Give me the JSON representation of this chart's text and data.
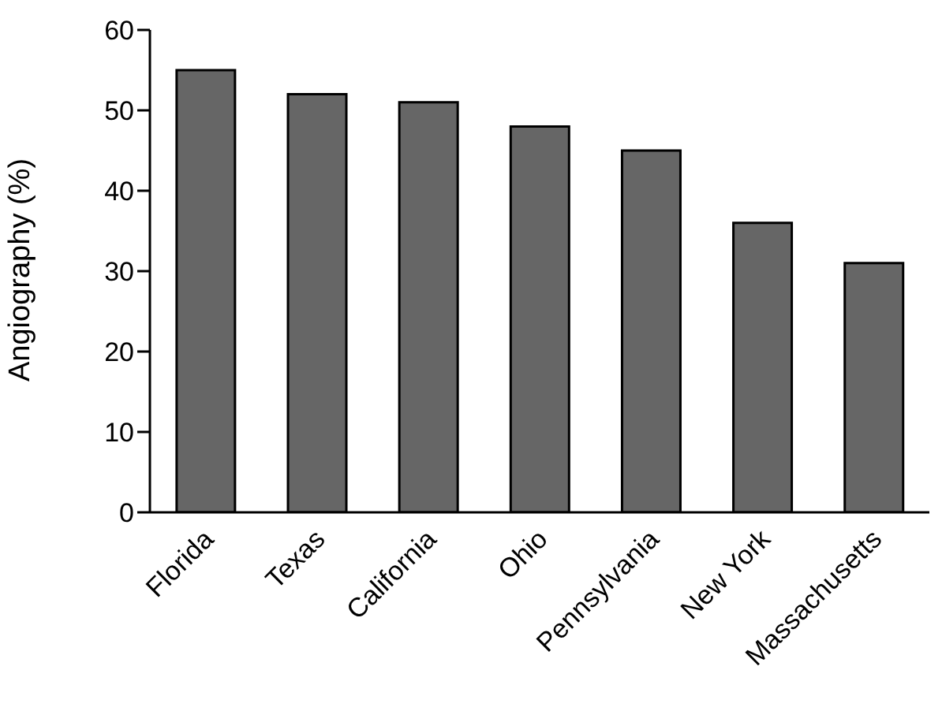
{
  "chart_data": {
    "type": "bar",
    "ylabel": "Angiography (%)",
    "categories": [
      "Florida",
      "Texas",
      "California",
      "Ohio",
      "Pennsylvania",
      "New York",
      "Massachusetts"
    ],
    "values": [
      55,
      52,
      51,
      48,
      45,
      36,
      31
    ],
    "color": "#666666",
    "ylim": [
      0,
      60
    ],
    "yticks": [
      0,
      10,
      20,
      30,
      40,
      50,
      60
    ],
    "grid": false,
    "legend": false
  }
}
